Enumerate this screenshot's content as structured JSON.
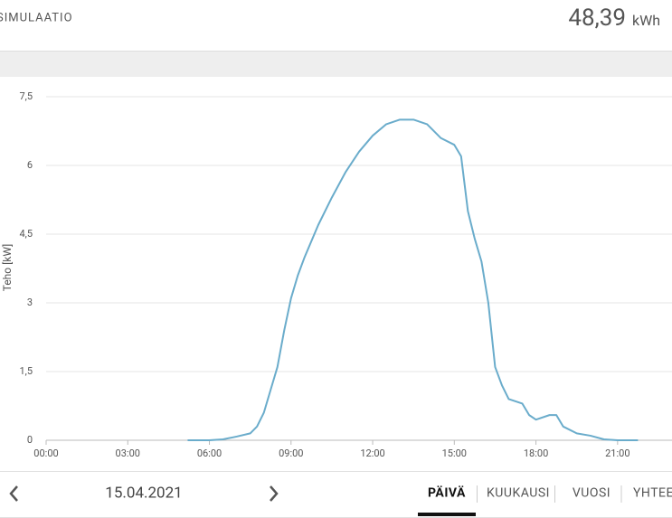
{
  "header": {
    "title": "SIMULAATIO",
    "total": "48,39",
    "unit": "kWh"
  },
  "chart_data": {
    "type": "line",
    "y_label": "Teho [kW]",
    "color": "#6aaccb",
    "grid": true,
    "x": [
      5.2,
      6.0,
      6.5,
      7.0,
      7.5,
      7.75,
      8.0,
      8.25,
      8.5,
      8.75,
      9.0,
      9.25,
      9.5,
      10.0,
      10.5,
      11.0,
      11.5,
      12.0,
      12.5,
      13.0,
      13.5,
      14.0,
      14.5,
      15.0,
      15.25,
      15.5,
      15.75,
      16.0,
      16.25,
      16.5,
      16.75,
      17.0,
      17.5,
      17.75,
      18.0,
      18.5,
      18.75,
      19.0,
      19.5,
      20.0,
      20.5,
      21.0,
      21.75
    ],
    "values": [
      0,
      0,
      0.02,
      0.08,
      0.15,
      0.3,
      0.6,
      1.1,
      1.6,
      2.4,
      3.1,
      3.6,
      4.0,
      4.7,
      5.3,
      5.85,
      6.3,
      6.65,
      6.9,
      7.0,
      7.0,
      6.9,
      6.6,
      6.45,
      6.2,
      5.0,
      4.4,
      3.9,
      3.0,
      1.6,
      1.2,
      0.9,
      0.8,
      0.55,
      0.45,
      0.55,
      0.55,
      0.3,
      0.15,
      0.1,
      0.02,
      0,
      0
    ],
    "xlim": [
      0,
      23
    ],
    "xticks": [
      {
        "value": 0,
        "label": "00:00"
      },
      {
        "value": 3,
        "label": "03:00"
      },
      {
        "value": 6,
        "label": "06:00"
      },
      {
        "value": 9,
        "label": "09:00"
      },
      {
        "value": 12,
        "label": "12:00"
      },
      {
        "value": 15,
        "label": "15:00"
      },
      {
        "value": 18,
        "label": "18:00"
      },
      {
        "value": 21,
        "label": "21:00"
      }
    ],
    "ylim": [
      0,
      7.5
    ],
    "yticks": [
      0,
      {
        "value": 1.5,
        "label": "1,5"
      },
      3,
      {
        "value": 4.5,
        "label": "4,5"
      },
      6,
      {
        "value": 7.5,
        "label": "7,5"
      }
    ]
  },
  "footer": {
    "date": "15.04.2021",
    "tabs": [
      "PÄIVÄ",
      "KUUKAUSI",
      "VUOSI",
      "YHTEENSÄ"
    ],
    "active_tab": 0
  }
}
